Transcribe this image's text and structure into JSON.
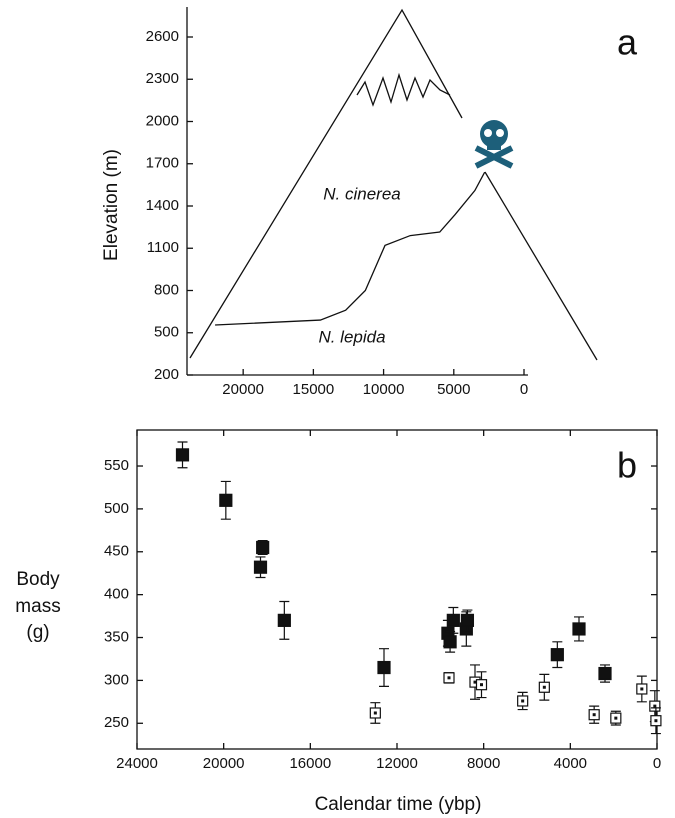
{
  "chart_data": [
    {
      "type": "line",
      "panel_label": "a",
      "ylabel": "Elevation (m)",
      "annotations": [
        "N. cinerea",
        "N. lepida"
      ],
      "x": [
        22000,
        14500,
        12700,
        11300,
        9900,
        8100,
        6000,
        4900,
        3500,
        2800
      ],
      "values": [
        555,
        590,
        660,
        800,
        1120,
        1190,
        1215,
        1340,
        1510,
        1640
      ],
      "color": "#111111",
      "xlim": [
        24000,
        0
      ],
      "xticks": [
        20000,
        15000,
        10000,
        5000,
        0
      ],
      "ylim": [
        200,
        2600
      ],
      "yticks": [
        200,
        500,
        800,
        1100,
        1400,
        1700,
        2000,
        2300,
        2600
      ],
      "frame": "axes"
    },
    {
      "type": "scatter",
      "panel_label": "b",
      "xlabel": "Calendar time (ybp)",
      "ylabel": [
        "Body",
        "mass",
        "(g)"
      ],
      "series": [
        {
          "color": "#111111",
          "marker": "filled",
          "x": [
            21900,
            19900,
            18300,
            18200,
            17200,
            12600,
            9650,
            9550,
            9400,
            8800,
            8750,
            4600,
            3600,
            2400
          ],
          "values": [
            563,
            510,
            432,
            455,
            370,
            315,
            355,
            345,
            370,
            360,
            370,
            330,
            360,
            308
          ],
          "errors": [
            15,
            22,
            12,
            8,
            22,
            22,
            15,
            12,
            15,
            20,
            12,
            15,
            14,
            10
          ]
        },
        {
          "color": "#111111",
          "marker": "open",
          "x": [
            13000,
            9600,
            8400,
            8100,
            6200,
            5200,
            2900,
            1900,
            700,
            100,
            50
          ],
          "values": [
            262,
            303,
            298,
            295,
            276,
            292,
            260,
            256,
            290,
            270,
            253
          ],
          "errors": [
            12,
            6,
            20,
            15,
            10,
            15,
            10,
            8,
            15,
            18,
            15
          ]
        }
      ],
      "xlim": [
        24000,
        0
      ],
      "xticks": [
        24000,
        20000,
        16000,
        12000,
        8000,
        4000,
        0
      ],
      "ylim": [
        220,
        592
      ],
      "yticks": [
        250,
        300,
        350,
        400,
        450,
        500,
        550
      ],
      "frame": "box"
    }
  ]
}
